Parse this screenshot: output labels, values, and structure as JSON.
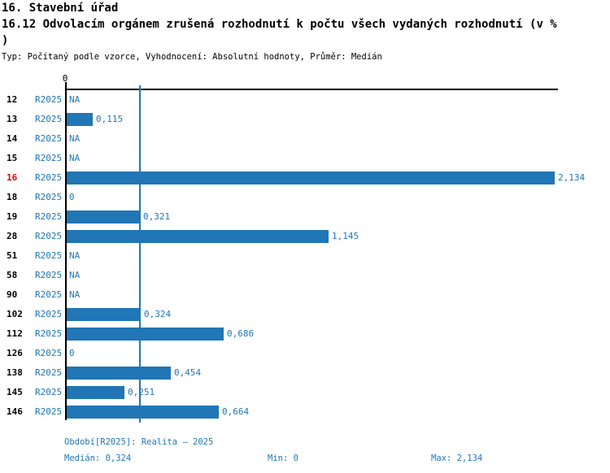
{
  "header": {
    "title": "16. Stavební úřad",
    "subtitle": "16.12 Odvolacím orgánem zrušená rozhodnutí k počtu všech vydaných rozhodnutí (v % )",
    "meta": "Typ: Počítaný podle vzorce, Vyhodnocení: Absolutní hodnoty, Průměr: Medián"
  },
  "chart_data": {
    "type": "bar",
    "orientation": "horizontal",
    "title": "16.12 Odvolacím orgánem zrušená rozhodnutí k počtu všech vydaných rozhodnutí (v %)",
    "series_name": "R2025",
    "x_axis": {
      "zero_tick_label": "0",
      "min": 0,
      "max": 2.134,
      "grid": "off"
    },
    "median_value": 0.324,
    "categories": [
      "12",
      "13",
      "14",
      "15",
      "16",
      "18",
      "19",
      "28",
      "51",
      "58",
      "90",
      "102",
      "112",
      "126",
      "138",
      "145",
      "146"
    ],
    "values": [
      null,
      0.115,
      null,
      null,
      2.134,
      0,
      0.321,
      1.145,
      null,
      null,
      null,
      0.324,
      0.686,
      0,
      0.454,
      0.251,
      0.664
    ],
    "rows": [
      {
        "category": "12",
        "period": "R2025",
        "value": null,
        "display": "NA",
        "highlight": false
      },
      {
        "category": "13",
        "period": "R2025",
        "value": 0.115,
        "display": "0,115",
        "highlight": false
      },
      {
        "category": "14",
        "period": "R2025",
        "value": null,
        "display": "NA",
        "highlight": false
      },
      {
        "category": "15",
        "period": "R2025",
        "value": null,
        "display": "NA",
        "highlight": false
      },
      {
        "category": "16",
        "period": "R2025",
        "value": 2.134,
        "display": "2,134",
        "highlight": true
      },
      {
        "category": "18",
        "period": "R2025",
        "value": 0,
        "display": "0",
        "highlight": false
      },
      {
        "category": "19",
        "period": "R2025",
        "value": 0.321,
        "display": "0,321",
        "highlight": false
      },
      {
        "category": "28",
        "period": "R2025",
        "value": 1.145,
        "display": "1,145",
        "highlight": false
      },
      {
        "category": "51",
        "period": "R2025",
        "value": null,
        "display": "NA",
        "highlight": false
      },
      {
        "category": "58",
        "period": "R2025",
        "value": null,
        "display": "NA",
        "highlight": false
      },
      {
        "category": "90",
        "period": "R2025",
        "value": null,
        "display": "NA",
        "highlight": false
      },
      {
        "category": "102",
        "period": "R2025",
        "value": 0.324,
        "display": "0,324",
        "highlight": false
      },
      {
        "category": "112",
        "period": "R2025",
        "value": 0.686,
        "display": "0,686",
        "highlight": false
      },
      {
        "category": "126",
        "period": "R2025",
        "value": 0,
        "display": "0",
        "highlight": false
      },
      {
        "category": "138",
        "period": "R2025",
        "value": 0.454,
        "display": "0,454",
        "highlight": false
      },
      {
        "category": "145",
        "period": "R2025",
        "value": 0.251,
        "display": "0,251",
        "highlight": false
      },
      {
        "category": "146",
        "period": "R2025",
        "value": 0.664,
        "display": "0,664",
        "highlight": false
      }
    ],
    "bar_color": "#2176b5",
    "highlight_color": "#e60000"
  },
  "footer": {
    "period": "Období[R2025]: Realita – 2025",
    "median": "Medián: 0,324",
    "min": "Min: 0",
    "max": "Max: 2,134"
  }
}
